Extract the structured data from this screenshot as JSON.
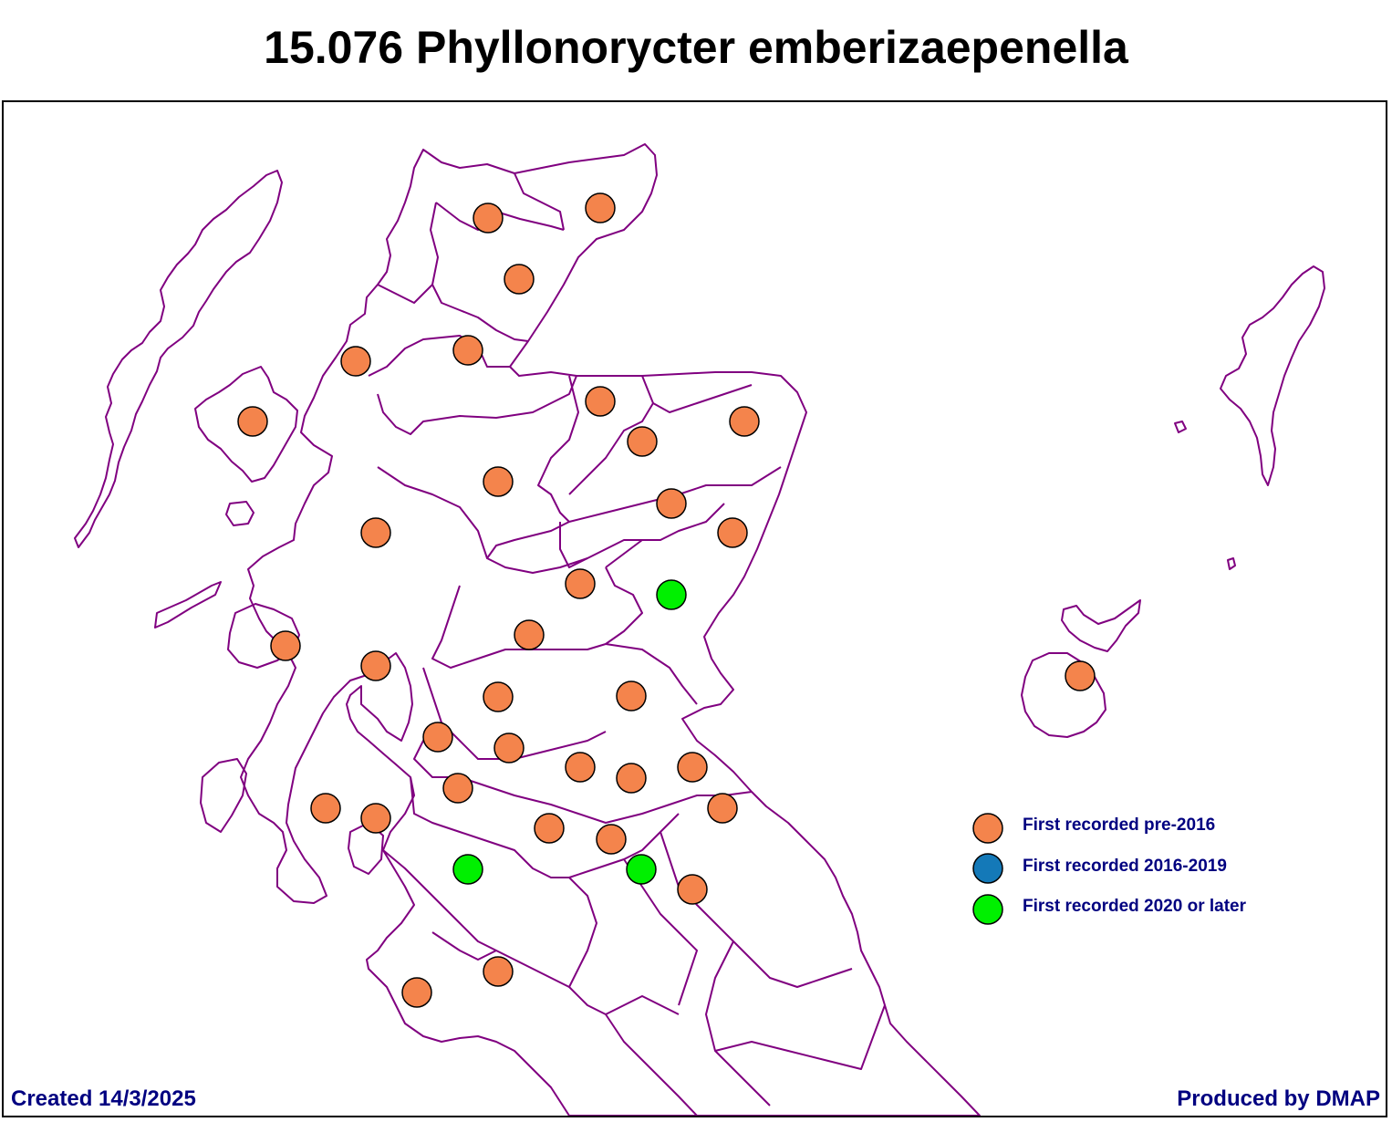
{
  "title": "15.076 Phyllonorycter emberizaepenella",
  "legend": [
    {
      "label": "First recorded pre-2016",
      "color": "#F4844C",
      "category": "pre2016"
    },
    {
      "label": "First recorded 2016-2019",
      "color": "#1479B8",
      "category": "2016to2019"
    },
    {
      "label": "First recorded 2020 or later",
      "color": "#00F000",
      "category": "2020plus"
    }
  ],
  "colors": {
    "boundary": "#800080",
    "text_blue": "#000080"
  },
  "footer": {
    "created": "Created 14/3/2025",
    "produced": "Produced by DMAP"
  }
}
